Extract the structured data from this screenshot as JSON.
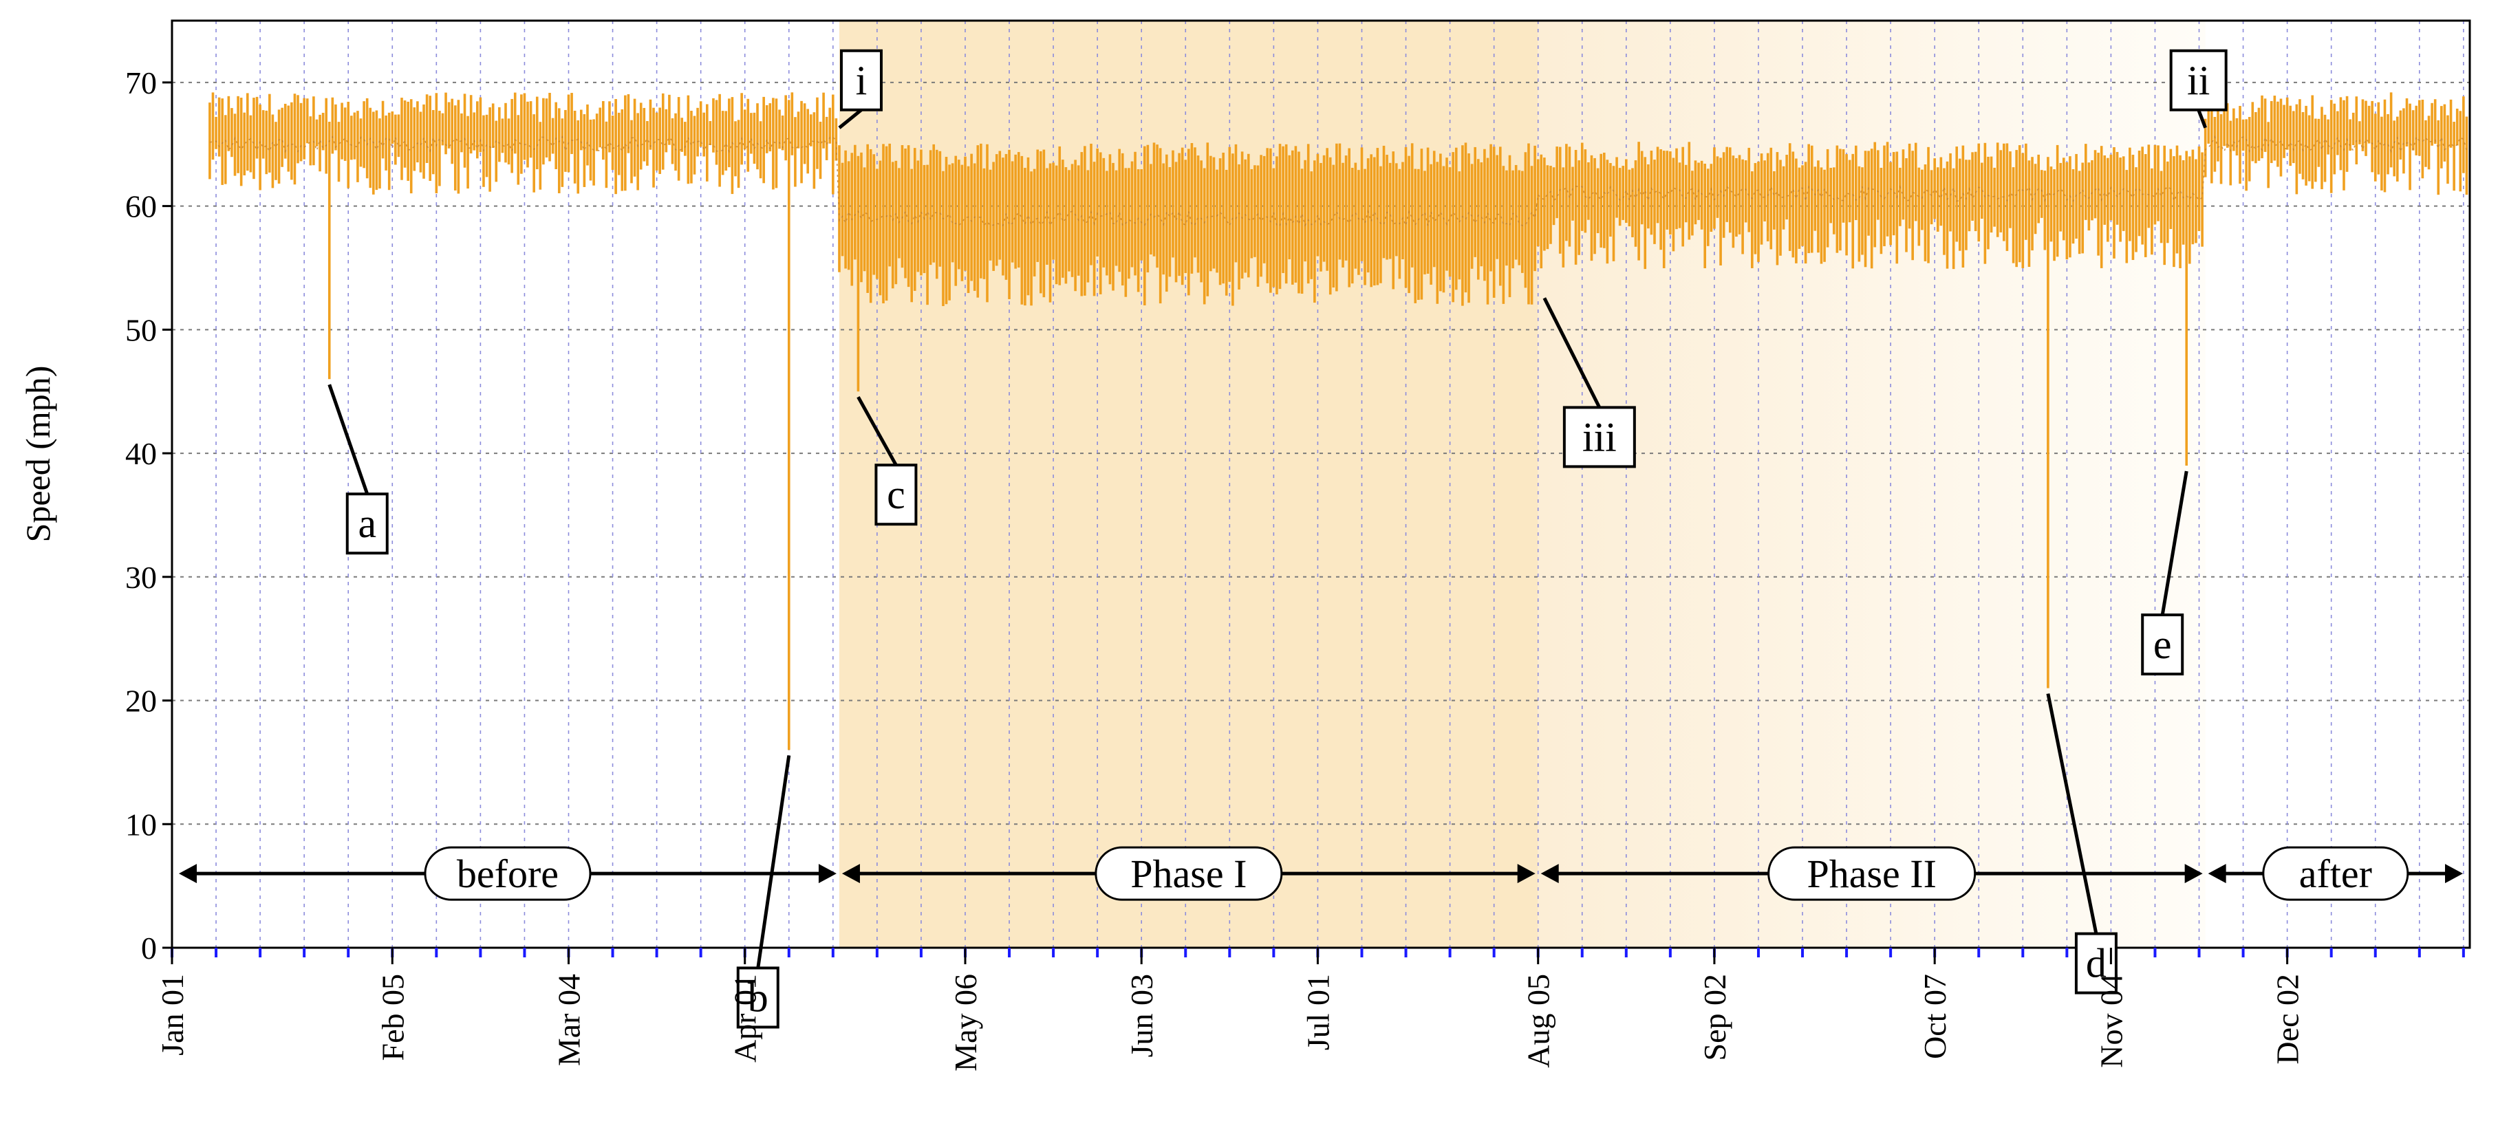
{
  "chart_data": {
    "type": "bar",
    "description_series": "daily speed range (min-max) with median",
    "ylabel": "Speed (mph)",
    "ylim": [
      0,
      75
    ],
    "y_ticks": [
      0,
      10,
      20,
      30,
      40,
      50,
      60,
      70
    ],
    "x_range_days": [
      0,
      365
    ],
    "x_ticks": [
      {
        "label": "Jan 01",
        "day": 0
      },
      {
        "label": "Feb 05",
        "day": 35
      },
      {
        "label": "Mar 04",
        "day": 63
      },
      {
        "label": "Apr 01",
        "day": 91
      },
      {
        "label": "May 06",
        "day": 126
      },
      {
        "label": "Jun 03",
        "day": 154
      },
      {
        "label": "Jul 01",
        "day": 182
      },
      {
        "label": "Aug 05",
        "day": 217
      },
      {
        "label": "Sep 02",
        "day": 245
      },
      {
        "label": "Oct 07",
        "day": 280
      },
      {
        "label": "Nov 04",
        "day": 308
      },
      {
        "label": "Dec 02",
        "day": 336
      }
    ],
    "grid": "dashed",
    "bar_color": "#F0A020",
    "median_color": "#C08030",
    "phases": [
      {
        "label": "before",
        "start_day": 0,
        "end_day": 106,
        "shade": "none"
      },
      {
        "label": "Phase I",
        "start_day": 106,
        "end_day": 217,
        "shade": "#FBE8C4"
      },
      {
        "label": "Phase II",
        "start_day": 217,
        "end_day": 323,
        "shade": "#FEF6E8"
      },
      {
        "label": "after",
        "start_day": 323,
        "end_day": 365,
        "shade": "none"
      }
    ],
    "segments": [
      {
        "start_day": 6,
        "end_day": 106,
        "low": 63,
        "high": 68,
        "median": 65
      },
      {
        "start_day": 106,
        "end_day": 217,
        "low": 54,
        "high": 64,
        "median": 59
      },
      {
        "start_day": 217,
        "end_day": 323,
        "low": 57,
        "high": 64,
        "median": 61
      },
      {
        "start_day": 323,
        "end_day": 365,
        "low": 63,
        "high": 68,
        "median": 65
      }
    ],
    "annotations": [
      {
        "label": "a",
        "day": 25,
        "value": 46
      },
      {
        "label": "b",
        "day": 98,
        "value": 16
      },
      {
        "label": "c",
        "day": 109,
        "value": 45
      },
      {
        "label": "d",
        "day": 298,
        "value": 21
      },
      {
        "label": "e",
        "day": 320,
        "value": 39
      },
      {
        "label": "i",
        "day": 106,
        "value": 66
      },
      {
        "label": "ii",
        "day": 323,
        "value": 66
      },
      {
        "label": "iii",
        "day": 218,
        "value": 53
      }
    ]
  }
}
